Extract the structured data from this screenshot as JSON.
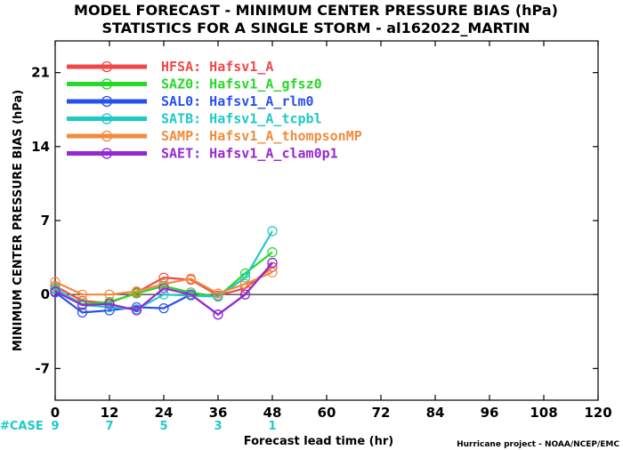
{
  "chart_data": {
    "type": "line",
    "title": "MODEL FORECAST - MINIMUM CENTER PRESSURE BIAS (hPa)",
    "subtitle": "STATISTICS FOR A SINGLE STORM - al162022_MARTIN",
    "xlabel": "Forecast lead time (hr)",
    "ylabel": "MINIMUM CENTER PRESSURE BIAS (hPa)",
    "xlim": [
      0,
      120
    ],
    "ylim": [
      -10,
      24
    ],
    "xticks": [
      0,
      12,
      24,
      36,
      48,
      60,
      72,
      84,
      96,
      108,
      120
    ],
    "yticks": [
      -7,
      0,
      7,
      14,
      21
    ],
    "case_label": "#CASE",
    "case_x": [
      0,
      12,
      24,
      36,
      48
    ],
    "case_counts": [
      "9",
      "7",
      "5",
      "3",
      "1"
    ],
    "credit": "Hurricane project - NOAA/NCEP/EMC",
    "legend_position": "top-left",
    "zero_line": true,
    "x": [
      0,
      6,
      12,
      18,
      24,
      30,
      36,
      42,
      48
    ],
    "series": [
      {
        "name": "HFSA: Hafsv1_A",
        "color": "#f04848",
        "values": [
          0.8,
          -0.6,
          -0.8,
          0.2,
          1.6,
          1.4,
          -0.1,
          0.6,
          2.6
        ]
      },
      {
        "name": "SAZ0: Hafsv1_A_gfsz0",
        "color": "#28d828",
        "values": [
          0.5,
          -0.9,
          -0.7,
          0.1,
          0.8,
          0.2,
          -0.2,
          2.0,
          4.0
        ]
      },
      {
        "name": "SAL0: Hafsv1_A_rlm0",
        "color": "#2850f0",
        "values": [
          0.2,
          -1.7,
          -1.5,
          -1.2,
          -1.3,
          0.0,
          -1.9,
          0.0,
          3.0
        ]
      },
      {
        "name": "SATB: Hafsv1_A_tcpbl",
        "color": "#1fc8c8",
        "values": [
          0.6,
          -1.0,
          -1.2,
          -1.4,
          0.0,
          -0.1,
          -0.2,
          1.6,
          6.0
        ]
      },
      {
        "name": "SAMP: Hafsv1_A_thompsonMP",
        "color": "#f08c3c",
        "values": [
          1.2,
          0.0,
          0.0,
          0.3,
          1.0,
          1.5,
          0.1,
          1.0,
          2.1
        ]
      },
      {
        "name": "SAET: Hafsv1_A_clam0p1",
        "color": "#9628d2",
        "values": [
          0.3,
          -1.0,
          -0.9,
          -1.5,
          0.6,
          0.0,
          -1.9,
          0.0,
          3.0
        ]
      }
    ]
  }
}
